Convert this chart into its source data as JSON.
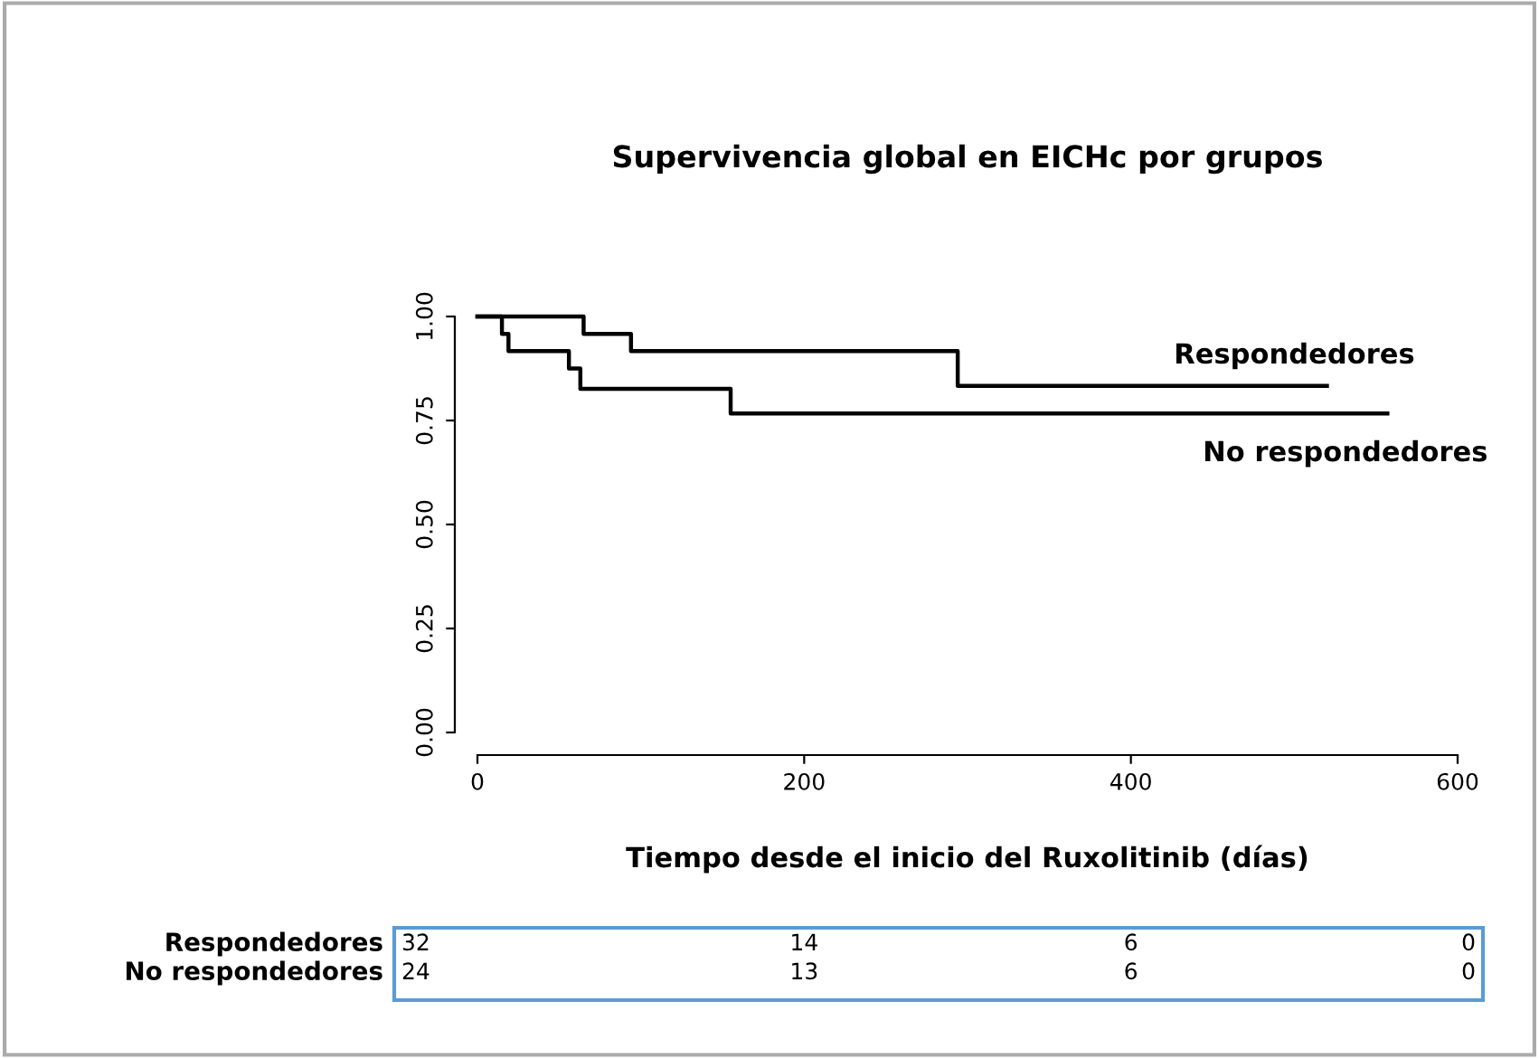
{
  "chart_data": {
    "type": "step",
    "title": "Supervivencia global en EICHc por grupos",
    "xlabel": "Tiempo desde el inicio del Ruxolitinib (días)",
    "series": [
      {
        "name": "Respondedores",
        "color": "#000000",
        "x": [
          0,
          65,
          94,
          294,
          520
        ],
        "values": [
          1.0,
          0.958,
          0.917,
          0.833,
          0.833
        ]
      },
      {
        "name": "No respondedores",
        "color": "#000000",
        "x": [
          0,
          15,
          19,
          56,
          63,
          155,
          557
        ],
        "values": [
          1.0,
          0.958,
          0.917,
          0.875,
          0.826,
          0.767,
          0.767
        ]
      }
    ],
    "xlim": [
      0,
      600
    ],
    "ylim": [
      0,
      1
    ],
    "xticks": [
      0,
      200,
      400,
      600
    ],
    "yticks": [
      {
        "value": 0,
        "label": "0.00"
      },
      {
        "value": 0.25,
        "label": "0.25"
      },
      {
        "value": 0.5,
        "label": "0.50"
      },
      {
        "value": 0.75,
        "label": "0.75"
      },
      {
        "value": 1,
        "label": "1.00"
      }
    ],
    "annotations": [
      "Respondedores",
      "No respondedores",
      "32",
      "14",
      "6",
      "0",
      "24",
      "13",
      "6",
      "0"
    ],
    "grid": false,
    "legend": false,
    "line_style": "solid",
    "marker": "none"
  }
}
